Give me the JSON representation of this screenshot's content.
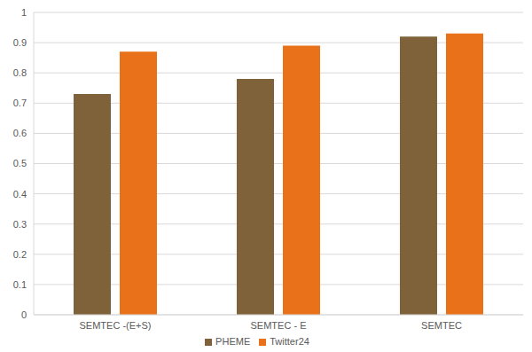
{
  "chart_data": {
    "type": "bar",
    "categories": [
      "SEMTEC -(E+S)",
      "SEMTEC - E",
      "SEMTEC"
    ],
    "series": [
      {
        "name": "PHEME",
        "color": "#7f6239",
        "values": [
          0.73,
          0.78,
          0.92
        ]
      },
      {
        "name": "Twitter24",
        "color": "#e97119",
        "values": [
          0.87,
          0.89,
          0.93
        ]
      }
    ],
    "ylim": [
      0,
      1
    ],
    "yticks": [
      0,
      0.1,
      0.2,
      0.3,
      0.4,
      0.5,
      0.6,
      0.7,
      0.8,
      0.9,
      1
    ],
    "grid": true,
    "legend": "bottom"
  }
}
